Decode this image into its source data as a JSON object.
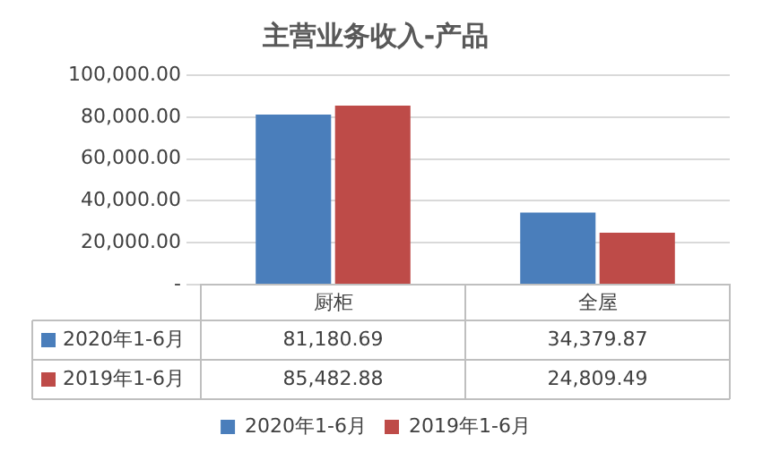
{
  "chart_data": {
    "type": "bar",
    "title": "主营业务收入-产品",
    "categories": [
      "厨柜",
      "全屋"
    ],
    "series": [
      {
        "name": "2020年1-6月",
        "color": "#4a7ebb",
        "values": [
          81180.69,
          34379.87
        ],
        "value_labels": [
          "81,180.69",
          "34,379.87"
        ]
      },
      {
        "name": "2019年1-6月",
        "color": "#be4b48",
        "values": [
          85482.88,
          24809.49
        ],
        "value_labels": [
          "85,482.88",
          "24,809.49"
        ]
      }
    ],
    "ylim": [
      0,
      100000
    ],
    "yticks": [
      {
        "value": 0,
        "label": "-"
      },
      {
        "value": 20000,
        "label": "20,000.00"
      },
      {
        "value": 40000,
        "label": "40,000.00"
      },
      {
        "value": 60000,
        "label": "60,000.00"
      },
      {
        "value": 80000,
        "label": "80,000.00"
      },
      {
        "value": 100000,
        "label": "100,000.00"
      }
    ],
    "grid": "y",
    "legend": "bottom"
  }
}
